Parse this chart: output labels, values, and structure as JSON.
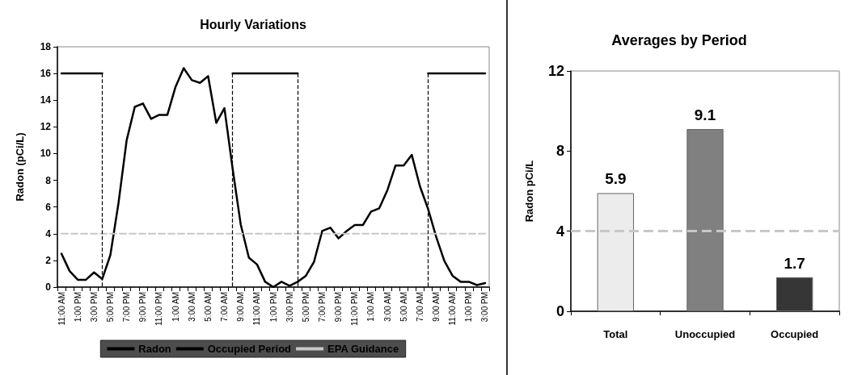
{
  "chart_data": [
    {
      "type": "line",
      "title": "Hourly Variations",
      "ylabel": "Radon (pCi/L)",
      "categories": [
        "11:00 AM",
        null,
        "1:00 PM",
        null,
        "3:00 PM",
        null,
        "5:00 PM",
        null,
        "7:00 PM",
        null,
        "9:00 PM",
        null,
        "11:00 PM",
        null,
        "1:00 AM",
        null,
        "3:00 AM",
        null,
        "5:00 AM",
        null,
        "7:00 AM",
        null,
        "9:00 AM",
        null,
        "11:00 AM",
        null,
        "1:00 PM",
        null,
        "3:00 PM",
        null,
        "5:00 PM",
        null,
        "7:00 PM",
        null,
        "9:00 PM",
        null,
        "11:00 PM",
        null,
        "1:00 AM",
        null,
        "3:00 AM",
        null,
        "5:00 AM",
        null,
        "7:00 AM",
        null,
        "9:00 AM",
        null,
        "11:00 AM",
        null,
        "1:00 PM",
        null,
        "3:00 PM"
      ],
      "series": [
        {
          "name": "Radon",
          "color": "#000000",
          "values": [
            2.5,
            1.2,
            0.55,
            0.55,
            1.1,
            0.6,
            2.4,
            6.3,
            11.0,
            13.5,
            13.75,
            12.6,
            12.9,
            12.9,
            15.0,
            16.4,
            15.5,
            15.3,
            15.8,
            12.3,
            13.4,
            8.9,
            4.7,
            2.2,
            1.7,
            0.4,
            0,
            0.4,
            0.1,
            0.4,
            0.85,
            1.9,
            4.2,
            4.45,
            3.65,
            4.2,
            4.65,
            4.65,
            5.65,
            5.9,
            7.25,
            9.1,
            9.1,
            9.9,
            7.55,
            5.85,
            3.75,
            1.95,
            0.85,
            0.4,
            0.4,
            0.15,
            0.3
          ]
        },
        {
          "name": "Occupied Period",
          "color": "#000000",
          "values": [
            16,
            16,
            16,
            16,
            16,
            16,
            null,
            null,
            null,
            null,
            null,
            null,
            null,
            null,
            null,
            null,
            null,
            null,
            null,
            null,
            null,
            16,
            16,
            16,
            16,
            16,
            16,
            16,
            16,
            16,
            null,
            null,
            null,
            null,
            null,
            null,
            null,
            null,
            null,
            null,
            null,
            null,
            null,
            null,
            null,
            16,
            16,
            16,
            16,
            16,
            16,
            16,
            16
          ]
        },
        {
          "name": "EPA Guidance",
          "color": "#c8c8c8",
          "line_style": "dashed",
          "values": [
            4,
            4,
            4,
            4,
            4,
            4,
            4,
            4,
            4,
            4,
            4,
            4,
            4,
            4,
            4,
            4,
            4,
            4,
            4,
            4,
            4,
            4,
            4,
            4,
            4,
            4,
            4,
            4,
            4,
            4,
            4,
            4,
            4,
            4,
            4,
            4,
            4,
            4,
            4,
            4,
            4,
            4,
            4,
            4,
            4,
            4,
            4,
            4,
            4,
            4,
            4,
            4,
            4
          ]
        }
      ],
      "ylim": [
        0,
        18
      ],
      "yticks": [
        0,
        2,
        4,
        6,
        8,
        10,
        12,
        14,
        16,
        18
      ],
      "grid": false,
      "legend": "bottom",
      "marker": "none"
    },
    {
      "type": "bar",
      "title": "Averages by Period",
      "ylabel": "Radon pCi/L",
      "categories": [
        "Total",
        "Unoccupied",
        "Occupied"
      ],
      "values": [
        5.9,
        9.1,
        1.7
      ],
      "colors": [
        "#ececec",
        "#808080",
        "#363636"
      ],
      "ylim": [
        0,
        12
      ],
      "yticks": [
        0,
        4,
        8,
        12
      ],
      "grid": false,
      "data_labels": true,
      "legend": false,
      "ref_lines": [
        {
          "axis": "y",
          "value": 4,
          "color": "#c8c8c8",
          "line_style": "dashed"
        }
      ]
    }
  ]
}
